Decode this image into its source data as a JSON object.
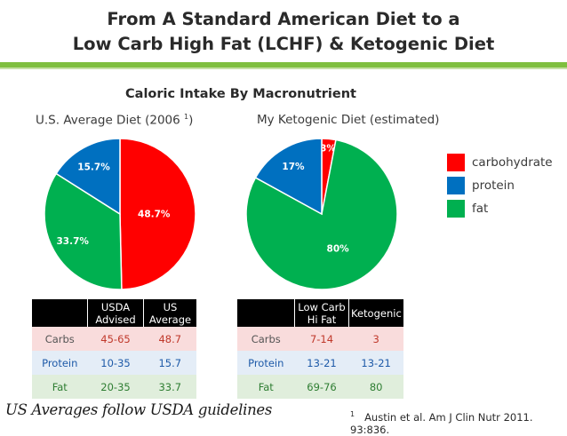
{
  "title_line1": "From A Standard American Diet to a",
  "title_line2": "Low Carb High Fat (LCHF) & Ketogenic Diet",
  "subtitle": "Caloric Intake By Macronutrient",
  "colors": {
    "carbohydrate": "#ff0000",
    "protein": "#0070c0",
    "fat": "#00b050",
    "accent_rule": "#7fbf3f"
  },
  "chart_data": [
    {
      "type": "pie",
      "title": "U.S. Average Diet (2006",
      "title_sup": "1",
      "title_tail": ")",
      "slices": [
        {
          "name": "carbohydrate",
          "value": 48.7,
          "label": "48.7%"
        },
        {
          "name": "fat",
          "value": 33.7,
          "label": "33.7%"
        },
        {
          "name": "protein",
          "value": 15.7,
          "label": "15.7%"
        }
      ]
    },
    {
      "type": "pie",
      "title": "My Ketogenic Diet (estimated)",
      "slices": [
        {
          "name": "carbohydrate",
          "value": 3,
          "label": "3%"
        },
        {
          "name": "fat",
          "value": 80,
          "label": "80%"
        },
        {
          "name": "protein",
          "value": 17,
          "label": "17%"
        }
      ]
    }
  ],
  "legend": [
    {
      "key": "carbohydrate",
      "label": "carbohydrate"
    },
    {
      "key": "protein",
      "label": "protein"
    },
    {
      "key": "fat",
      "label": "fat"
    }
  ],
  "table_us": {
    "headers": [
      "",
      "USDA Advised",
      "US Average"
    ],
    "rows": [
      {
        "label": "Carbs",
        "col1": "45-65",
        "col2": "48.7"
      },
      {
        "label": "Protein",
        "col1": "10-35",
        "col2": "15.7"
      },
      {
        "label": "Fat",
        "col1": "20-35",
        "col2": "33.7"
      }
    ]
  },
  "table_keto": {
    "headers": [
      "",
      "Low Carb Hi Fat",
      "Ketogenic"
    ],
    "rows": [
      {
        "label": "Carbs",
        "col1": "7-14",
        "col2": "3"
      },
      {
        "label": "Protein",
        "col1": "13-21",
        "col2": "13-21"
      },
      {
        "label": "Fat",
        "col1": "69-76",
        "col2": "80"
      }
    ]
  },
  "note": "US Averages follow USDA guidelines",
  "citation_sup": "1",
  "citation": "Austin et al. Am J Clin Nutr 2011. 93:836."
}
